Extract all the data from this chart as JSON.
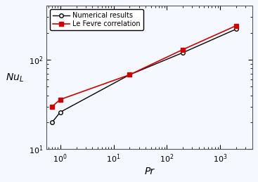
{
  "numerical_pr": [
    0.7,
    1.0,
    20.0,
    200.0,
    2000.0
  ],
  "numerical_nu": [
    20.0,
    26.0,
    68.0,
    120.0,
    220.0
  ],
  "lefevre_pr": [
    0.7,
    1.0,
    20.0,
    200.0,
    2000.0
  ],
  "lefevre_nu": [
    30.0,
    36.0,
    68.0,
    130.0,
    240.0
  ],
  "line1_color": "#000000",
  "line2_color": "#cc0000",
  "marker1": "o",
  "marker2": "s",
  "label1": "Numerical results",
  "label2": "Le Fevre correlation",
  "xlabel": "Pr",
  "ylabel": "$Nu_L$",
  "xlim": [
    0.55,
    4000
  ],
  "ylim": [
    10,
    400
  ],
  "xticks": [
    1,
    10,
    100,
    1000
  ],
  "yticks": [
    10,
    100
  ],
  "bg_color": "#f5f8ff"
}
